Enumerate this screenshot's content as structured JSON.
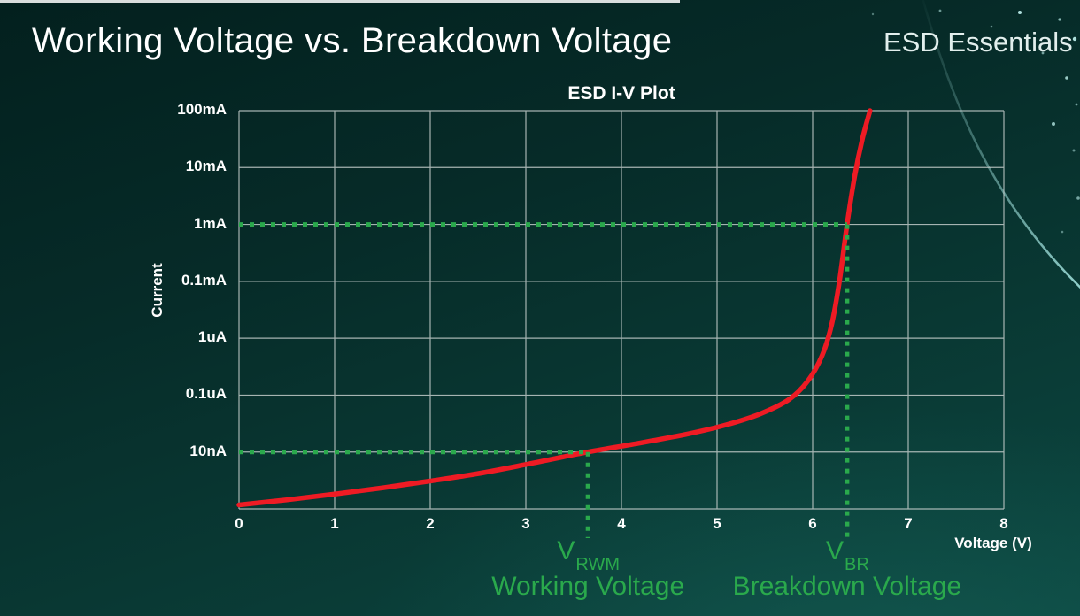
{
  "slide": {
    "title": "Working Voltage vs. Breakdown Voltage",
    "brand": "ESD Essentials"
  },
  "chart_data": {
    "type": "line",
    "title": "ESD I-V Plot",
    "xlabel": "Voltage (V)",
    "ylabel": "Current",
    "x_range": [
      0,
      8
    ],
    "x_ticks": [
      "0",
      "1",
      "2",
      "3",
      "4",
      "5",
      "6",
      "7",
      "8"
    ],
    "y_tick_labels": [
      "100mA",
      "10mA",
      "1mA",
      "0.1mA",
      "1uA",
      "0.1uA",
      "10nA"
    ],
    "y_axis_note": "log-style axis, evenly spaced labeled gridlines top to bottom, one unlabeled row below 10nA",
    "grid": true,
    "curve": {
      "name": "ESD diode I-V characteristic",
      "color": "#ee1b24",
      "points_v_row": [
        [
          0,
          6.93
        ],
        [
          0.5,
          6.84
        ],
        [
          1,
          6.74
        ],
        [
          1.5,
          6.63
        ],
        [
          2,
          6.51
        ],
        [
          2.5,
          6.38
        ],
        [
          3,
          6.22
        ],
        [
          3.65,
          6.0
        ],
        [
          4.2,
          5.84
        ],
        [
          4.7,
          5.68
        ],
        [
          5.1,
          5.52
        ],
        [
          5.45,
          5.33
        ],
        [
          5.75,
          5.08
        ],
        [
          5.95,
          4.75
        ],
        [
          6.1,
          4.3
        ],
        [
          6.2,
          3.75
        ],
        [
          6.28,
          3.0
        ],
        [
          6.36,
          2.0
        ],
        [
          6.44,
          1.15
        ],
        [
          6.52,
          0.5
        ],
        [
          6.6,
          0
        ]
      ]
    },
    "annotations": [
      {
        "id": "working",
        "symbol": "V",
        "subscript": "RWM",
        "caption": "Working Voltage",
        "voltage": 3.65,
        "current_label": "10nA",
        "row": 6
      },
      {
        "id": "breakdown",
        "symbol": "V",
        "subscript": "BR",
        "caption": "Breakdown Voltage",
        "voltage": 6.36,
        "current_label": "1mA",
        "row": 2
      }
    ],
    "colors": {
      "grid": "#c2cbc9",
      "curve": "#ee1b24",
      "annotation": "#2aa94c",
      "text": "#ffffff"
    }
  }
}
